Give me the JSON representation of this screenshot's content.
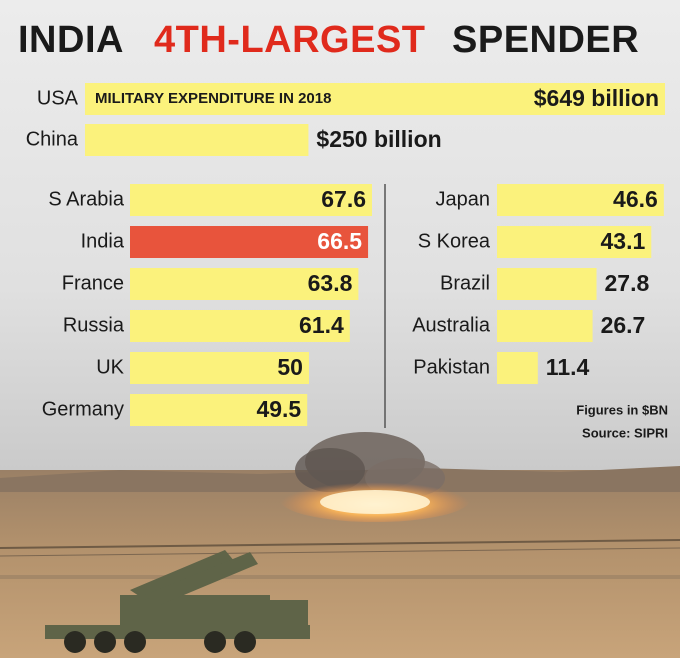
{
  "header": {
    "title": [
      "INDIA",
      "4TH-LARGEST",
      "SPENDER"
    ]
  },
  "chart_data": [
    {
      "type": "bar",
      "orientation": "horizontal",
      "subtitle": "MILITARY EXPENDITURE IN 2018",
      "categories": [
        "USA",
        "China"
      ],
      "values": [
        649,
        250
      ],
      "value_labels": [
        "$649 billion",
        "$250 billion"
      ],
      "colors": [
        "#fbf27c",
        "#fbf27c"
      ]
    },
    {
      "type": "bar",
      "orientation": "horizontal",
      "categories": [
        "S Arabia",
        "India",
        "France",
        "Russia",
        "UK",
        "Germany"
      ],
      "values": [
        67.6,
        66.5,
        63.8,
        61.4,
        50,
        49.5
      ],
      "colors": [
        "#fbf27c",
        "#e8543c",
        "#fbf27c",
        "#fbf27c",
        "#fbf27c",
        "#fbf27c"
      ]
    },
    {
      "type": "bar",
      "orientation": "horizontal",
      "categories": [
        "Japan",
        "S Korea",
        "Brazil",
        "Australia",
        "Pakistan"
      ],
      "values": [
        46.6,
        43.1,
        27.8,
        26.7,
        11.4
      ],
      "colors": [
        "#fbf27c",
        "#fbf27c",
        "#fbf27c",
        "#fbf27c",
        "#fbf27c"
      ]
    }
  ],
  "notes": [
    "Figures in $BN",
    "Source: SIPRI"
  ]
}
